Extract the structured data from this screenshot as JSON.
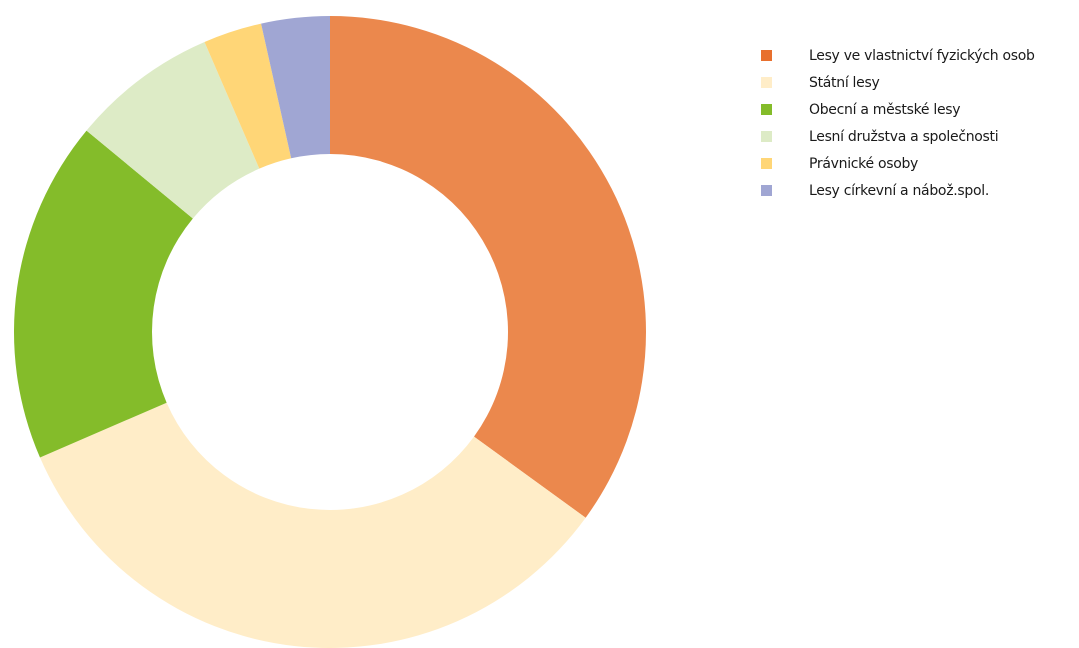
{
  "chart_data": {
    "type": "pie",
    "donut": true,
    "legend_position": "right",
    "categories": [
      "Lesy ve vlastnictví fyzických osob",
      "Státní lesy",
      "Obecní a městské lesy",
      "Lesní družstva a společnosti",
      "Právnické osoby",
      "Lesy církevní a nábož.spol."
    ],
    "values": [
      35.0,
      33.5,
      17.5,
      7.5,
      3.0,
      3.5
    ],
    "colors": [
      "#EB884D",
      "#FFEDC8",
      "#84BC2A",
      "#DDEBC6",
      "#FFD677",
      "#A0A6D3"
    ],
    "legend_swatch_colors": [
      "#E8702E",
      "#FFEDC8",
      "#84BC2A",
      "#DDEBC6",
      "#FFD677",
      "#A0A6D3"
    ]
  }
}
